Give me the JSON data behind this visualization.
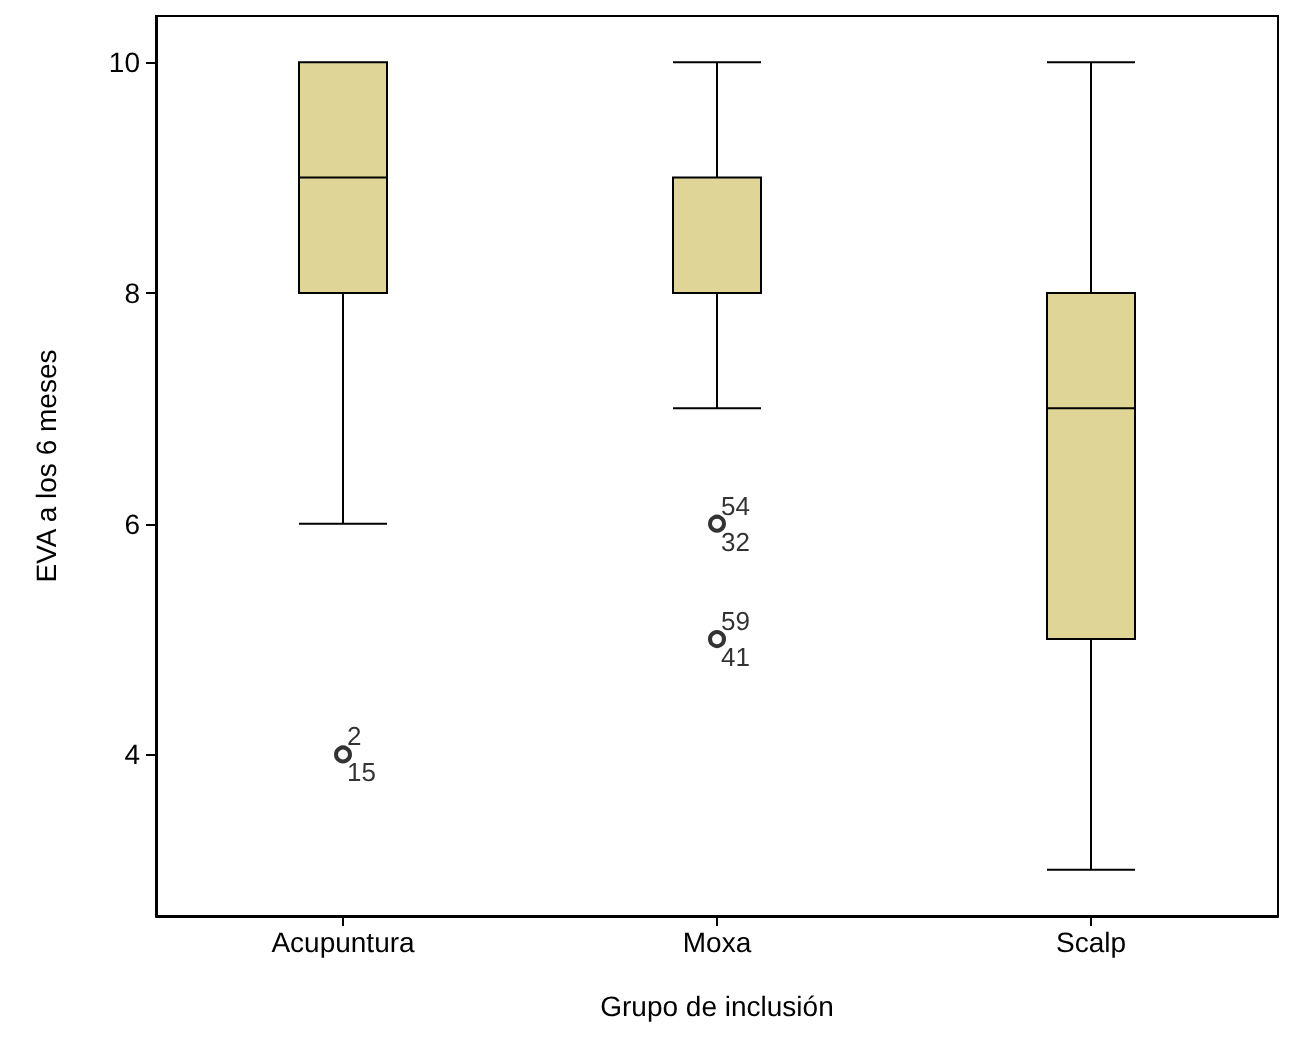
{
  "chart_data": {
    "type": "box",
    "xlabel": "Grupo de inclusión",
    "ylabel": "EVA a los 6 meses",
    "categories": [
      "Acupuntura",
      "Moxa",
      "Scalp"
    ],
    "boxes": [
      {
        "low": 6,
        "q1": 8,
        "median": 9,
        "q3": 10,
        "high": 10,
        "outliers": [
          4
        ]
      },
      {
        "low": 7,
        "q1": 8,
        "median": 8,
        "q3": 9,
        "high": 10,
        "outliers": [
          6,
          5
        ]
      },
      {
        "low": 3,
        "q1": 5,
        "median": 7,
        "q3": 8,
        "high": 10
      }
    ],
    "color": "#dfd597",
    "ylim": [
      2.6,
      10.4
    ],
    "yticks": [
      4,
      6,
      8,
      10
    ],
    "grid": false,
    "marker": "circle",
    "annotations": [
      "2",
      "15",
      "54",
      "32",
      "59",
      "41"
    ]
  }
}
